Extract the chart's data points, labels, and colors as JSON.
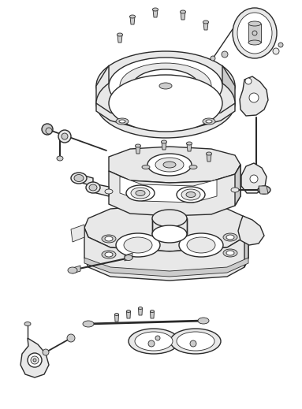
{
  "bg_color": "#ffffff",
  "line_color": "#2a2a2a",
  "fill_light": "#e8e8e8",
  "fill_mid": "#cccccc",
  "fill_dark": "#aaaaaa",
  "lw_main": 1.0,
  "lw_thin": 0.6,
  "figsize": [
    3.83,
    5.19
  ],
  "dpi": 100
}
